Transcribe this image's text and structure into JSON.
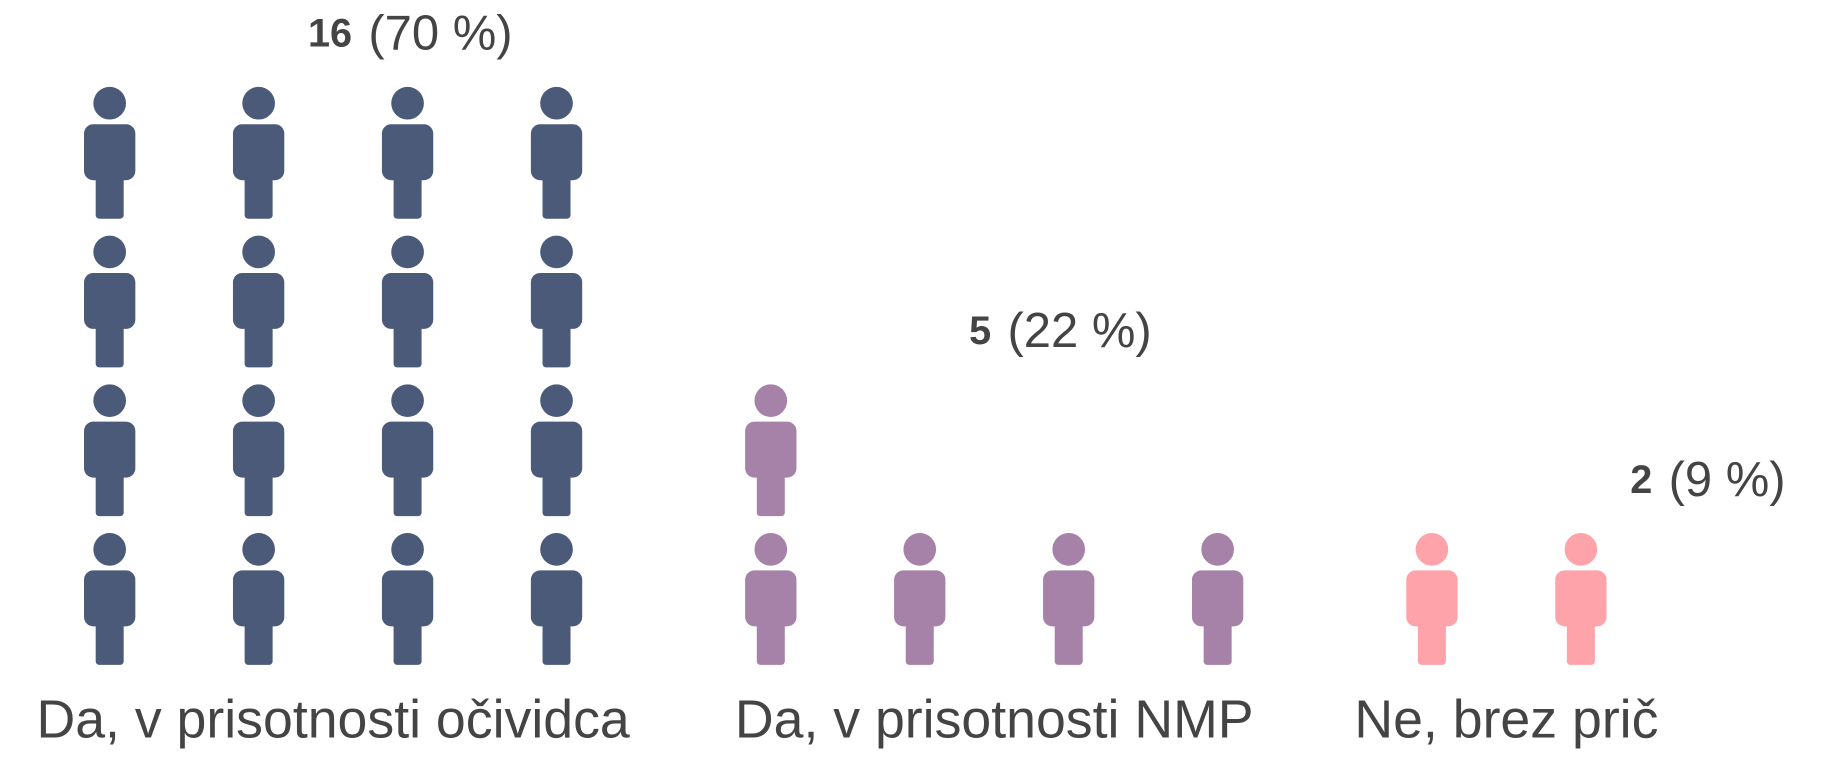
{
  "chart_data": {
    "type": "pictograph",
    "categories": [
      "Da, v prisotnosti očividca",
      "Da, v prisotnosti NMP",
      "Ne, brez prič"
    ],
    "values": [
      16,
      5,
      2
    ],
    "value_labels": [
      "(70 %)",
      "(22 %)",
      "(9 %)"
    ],
    "colors": [
      "#4a5a78",
      "#a681a8",
      "#ffa3ab"
    ]
  }
}
